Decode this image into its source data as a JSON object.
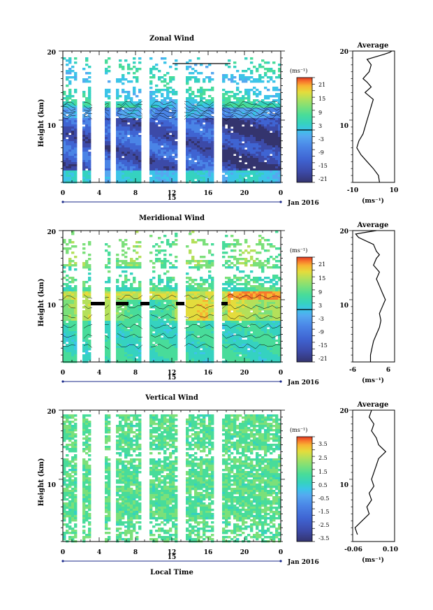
{
  "figure": {
    "xlabel": "Local Time",
    "date_label": "Jan 2016",
    "day_label": "15"
  },
  "chart_data": [
    {
      "type": "heatmap",
      "title": "Zonal Wind",
      "ylabel": "Height (km)",
      "x_ticks": [
        "0",
        "4",
        "8",
        "12",
        "16",
        "20",
        "0"
      ],
      "y_ticks": [
        "20",
        "10"
      ],
      "xlim": [
        0,
        24
      ],
      "ylim": [
        1,
        20
      ],
      "colorbar": {
        "unit": "(ms⁻¹)",
        "ticks": [
          "21",
          "15",
          "9",
          "3",
          "-3",
          "-9",
          "-15",
          "-21"
        ],
        "range": [
          -24,
          24
        ]
      },
      "profile": {
        "title": "Average",
        "xlabel": "(ms⁻¹)",
        "x_ticks": [
          "-10",
          "10"
        ],
        "xlim": [
          -10,
          10
        ],
        "y_ticks": [
          "20",
          "10"
        ],
        "points": [
          [
            3,
            1
          ],
          [
            2.5,
            2
          ],
          [
            0,
            3
          ],
          [
            -3,
            4
          ],
          [
            -6,
            5
          ],
          [
            -8,
            6
          ],
          [
            -7,
            7
          ],
          [
            -5,
            8
          ],
          [
            -4,
            9
          ],
          [
            -3,
            10
          ],
          [
            -2,
            11
          ],
          [
            -1,
            12
          ],
          [
            0,
            13
          ],
          [
            -2,
            13.5
          ],
          [
            -4,
            14
          ],
          [
            -1,
            14.8
          ],
          [
            -3,
            15.5
          ],
          [
            -5,
            16
          ],
          [
            -2,
            17
          ],
          [
            -1,
            18
          ],
          [
            -3,
            18.8
          ],
          [
            5,
            19.5
          ],
          [
            8,
            19.8
          ],
          [
            9,
            20
          ]
        ]
      }
    },
    {
      "type": "heatmap",
      "title": "Meridional Wind",
      "ylabel": "Height (km)",
      "x_ticks": [
        "0",
        "4",
        "8",
        "12",
        "16",
        "20",
        "0"
      ],
      "y_ticks": [
        "20",
        "10"
      ],
      "xlim": [
        0,
        24
      ],
      "ylim": [
        1,
        20
      ],
      "colorbar": {
        "unit": "(ms⁻¹)",
        "ticks": [
          "21",
          "15",
          "9",
          "3",
          "-3",
          "-9",
          "-15",
          "-21"
        ],
        "range": [
          -24,
          24
        ]
      },
      "profile": {
        "title": "Average",
        "xlabel": "(ms⁻¹)",
        "x_ticks": [
          "-6",
          "6"
        ],
        "xlim": [
          -6,
          6
        ],
        "y_ticks": [
          "20",
          "10"
        ],
        "points": [
          [
            0,
            1
          ],
          [
            0,
            2
          ],
          [
            0.5,
            3
          ],
          [
            1,
            4
          ],
          [
            2,
            5
          ],
          [
            3,
            6
          ],
          [
            3.5,
            7
          ],
          [
            3,
            8
          ],
          [
            4,
            9
          ],
          [
            5,
            10
          ],
          [
            4,
            11
          ],
          [
            3,
            12
          ],
          [
            2,
            13
          ],
          [
            3,
            14
          ],
          [
            1,
            15
          ],
          [
            2,
            16
          ],
          [
            3,
            16.5
          ],
          [
            2,
            17
          ],
          [
            1,
            18
          ],
          [
            -4,
            19
          ],
          [
            -5,
            19.5
          ],
          [
            -1,
            19.8
          ],
          [
            2,
            20
          ]
        ]
      }
    },
    {
      "type": "heatmap",
      "title": "Vertical Wind",
      "ylabel": "Height (km)",
      "x_ticks": [
        "0",
        "4",
        "8",
        "12",
        "16",
        "20",
        "0"
      ],
      "y_ticks": [
        "20",
        "10"
      ],
      "xlim": [
        0,
        24
      ],
      "ylim": [
        1,
        20
      ],
      "colorbar": {
        "unit": "(ms⁻¹)",
        "ticks": [
          "3.5",
          "2.5",
          "1.5",
          "0.5",
          "-0.5",
          "-1.5",
          "-2.5",
          "-3.5"
        ],
        "range": [
          -4,
          4
        ]
      },
      "profile": {
        "title": "Average",
        "xlabel": "(ms⁻¹)",
        "x_ticks": [
          "-0.06",
          "0.10"
        ],
        "xlim": [
          -0.06,
          0.1
        ],
        "y_ticks": [
          "20",
          "10"
        ],
        "points": [
          [
            -0.04,
            2
          ],
          [
            -0.05,
            3
          ],
          [
            -0.02,
            4
          ],
          [
            0.01,
            5
          ],
          [
            0.0,
            6
          ],
          [
            0.02,
            7
          ],
          [
            0.01,
            8
          ],
          [
            0.03,
            9
          ],
          [
            0.02,
            10
          ],
          [
            0.03,
            11
          ],
          [
            0.04,
            12
          ],
          [
            0.05,
            13
          ],
          [
            0.08,
            14
          ],
          [
            0.05,
            15
          ],
          [
            0.04,
            16
          ],
          [
            0.02,
            17
          ],
          [
            0.03,
            18
          ],
          [
            0.01,
            19
          ],
          [
            0.02,
            20
          ]
        ]
      }
    }
  ],
  "colors": {
    "colormap": [
      "#34346e",
      "#3c4aa8",
      "#3f64d2",
      "#4a84e6",
      "#55a8f0",
      "#3cc4e8",
      "#35d2c0",
      "#48dc9a",
      "#7be07a",
      "#b4e05a",
      "#e4dc3c",
      "#f8b432",
      "#f87a2c",
      "#e43a24"
    ]
  }
}
